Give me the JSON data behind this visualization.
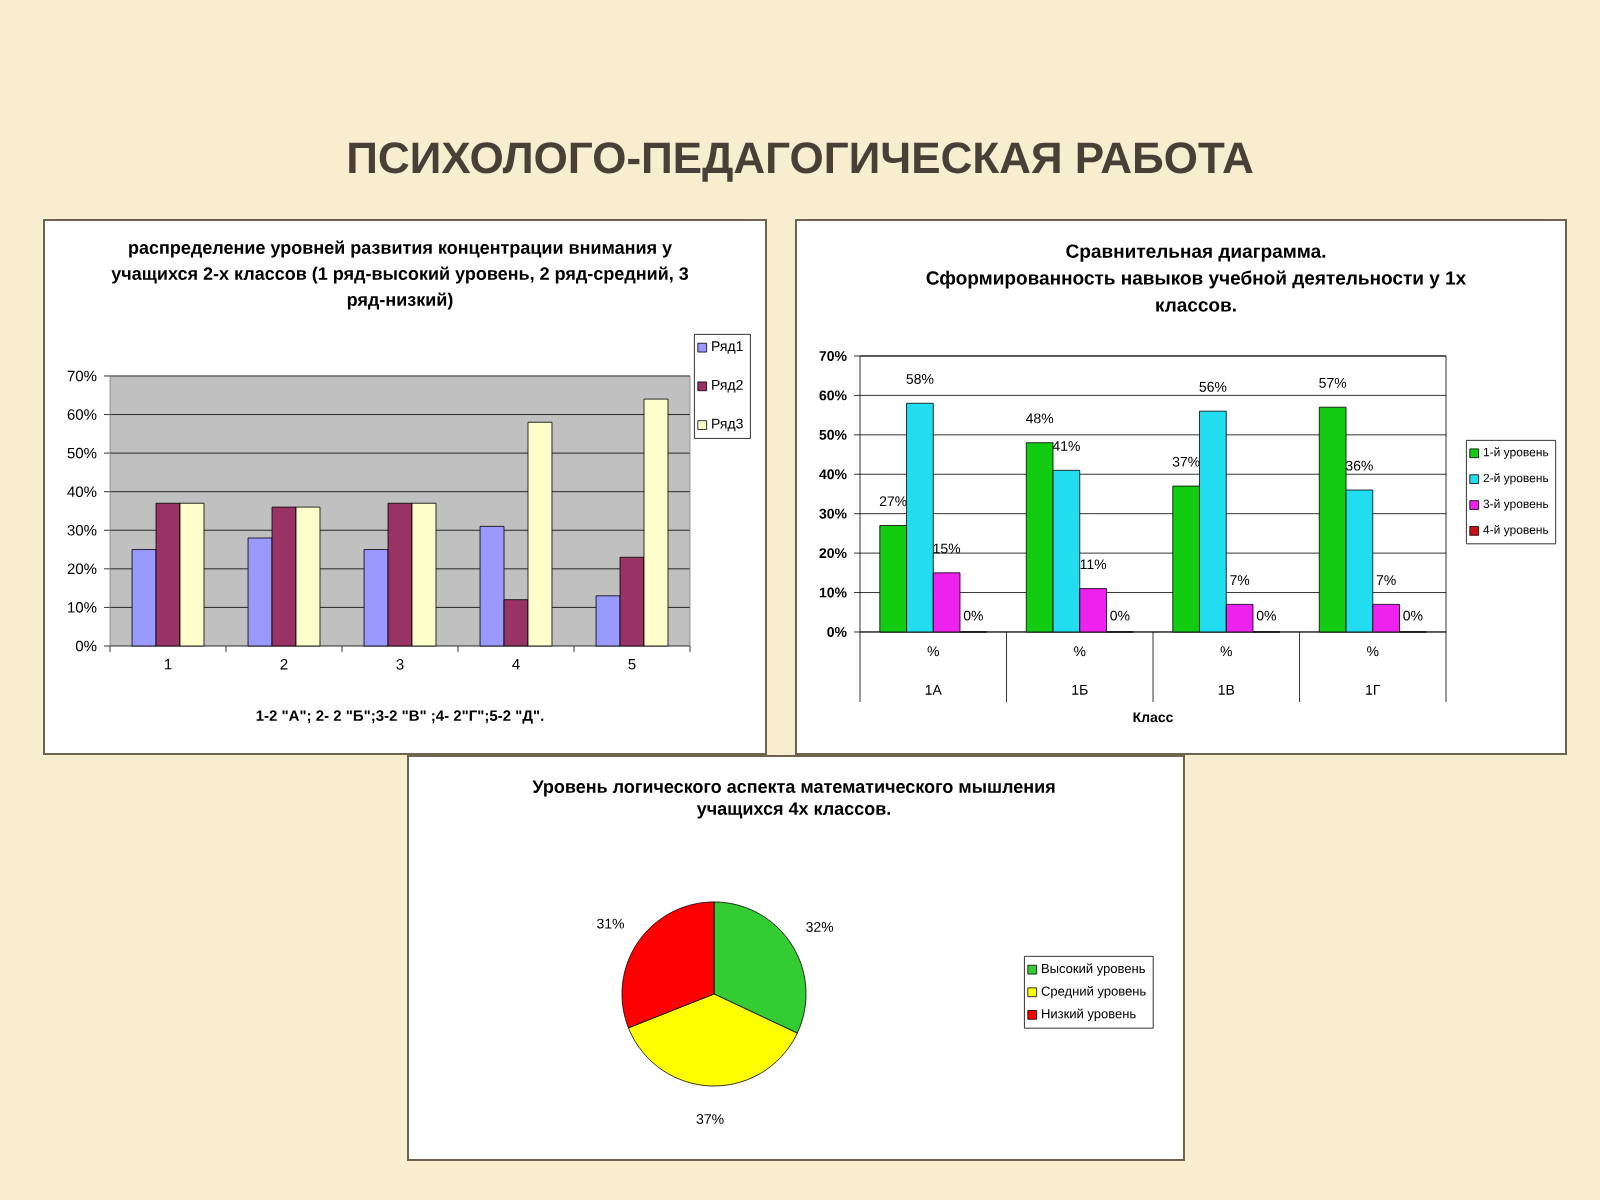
{
  "chart_data": [
    {
      "type": "other",
      "title": "ПСИХОЛОГО-ПЕДАГОГИЧЕСКАЯ РАБОТА"
    },
    {
      "type": "bar",
      "title": "распределение уровней развития концентрации внимания у учащихся 2-х классов (1 ряд-высокий уровень, 2 ряд-средний, 3 ряд-низкий)",
      "xlabel": "1-2 \"А\"; 2- 2 \"Б\";3-2 \"В\" ;4- 2\"Г\";5-2 \"Д\".",
      "categories": [
        "1",
        "2",
        "3",
        "4",
        "5"
      ],
      "series": [
        {
          "name": "Ряд1",
          "color": "#9999ff",
          "values": [
            25,
            28,
            25,
            31,
            13
          ]
        },
        {
          "name": "Ряд2",
          "color": "#993366",
          "values": [
            37,
            36,
            37,
            12,
            23
          ]
        },
        {
          "name": "Ряд3",
          "color": "#ffffcc",
          "values": [
            37,
            36,
            37,
            58,
            64
          ]
        }
      ],
      "ylim": [
        0,
        70
      ],
      "yticks": [
        {
          "value": 0,
          "label": "0%"
        },
        {
          "value": 10,
          "label": "10%"
        },
        {
          "value": 20,
          "label": "20%"
        },
        {
          "value": 30,
          "label": "30%"
        },
        {
          "value": 40,
          "label": "40%"
        },
        {
          "value": 50,
          "label": "50%"
        },
        {
          "value": 60,
          "label": "60%"
        },
        {
          "value": 70,
          "label": "70%"
        }
      ],
      "grid": "y",
      "legend": "right"
    },
    {
      "type": "bar",
      "title": "Сравнительная диаграмма.",
      "subtitle": "Сформированность навыков учебной деятельности у 1х классов.",
      "xlabel": "Класс",
      "categories": [
        "1А",
        "1Б",
        "1В",
        "1Г"
      ],
      "annotations": [
        "%",
        "%",
        "%",
        "%",
        {
          "text": "0%",
          "x": "1А",
          "y": 0
        },
        {
          "text": "0%",
          "x": "1Б",
          "y": 0
        },
        {
          "text": "0%",
          "x": "1В",
          "y": 0
        },
        {
          "text": "0%",
          "x": "1Г",
          "y": 0
        }
      ],
      "series": [
        {
          "name": "1-й уровень",
          "color": "#11cc11",
          "values": [
            27,
            48,
            37,
            57
          ],
          "value_labels": [
            "27%",
            "48%",
            "37%",
            "57%"
          ]
        },
        {
          "name": "2-й уровень",
          "color": "#22ddf0",
          "values": [
            58,
            41,
            56,
            36
          ],
          "value_labels": [
            "58%",
            "41%",
            "56%",
            "36%"
          ]
        },
        {
          "name": "3-й уровень",
          "color": "#ee22ee",
          "values": [
            15,
            11,
            7,
            7
          ],
          "value_labels": [
            "15%",
            "11%",
            "7%",
            "7%"
          ]
        },
        {
          "name": "4-й уровень",
          "color": "#cc1111",
          "values": [
            0,
            0,
            0,
            0
          ]
        }
      ],
      "ylim": [
        0,
        70
      ],
      "yticks": [
        {
          "value": 0,
          "label": "0%"
        },
        {
          "value": 10,
          "label": "10%"
        },
        {
          "value": 20,
          "label": "20%"
        },
        {
          "value": 30,
          "label": "30%"
        },
        {
          "value": 40,
          "label": "40%"
        },
        {
          "value": 50,
          "label": "50%"
        },
        {
          "value": 60,
          "label": "60%"
        },
        {
          "value": 70,
          "label": "70%"
        }
      ],
      "grid": "y",
      "legend": "right"
    },
    {
      "type": "pie",
      "title": "Уровень логического аспекта математического мышления учащихся 4х классов.",
      "categories": [
        "Высокий уровень",
        "Средний уровень",
        "Низкий уровень"
      ],
      "values": [
        32,
        37,
        31
      ],
      "colors": [
        "#33cc33",
        "#ffff00",
        "#ff0000"
      ],
      "value_labels": [
        "32%",
        "37%",
        "31%"
      ],
      "legend": "right"
    }
  ]
}
